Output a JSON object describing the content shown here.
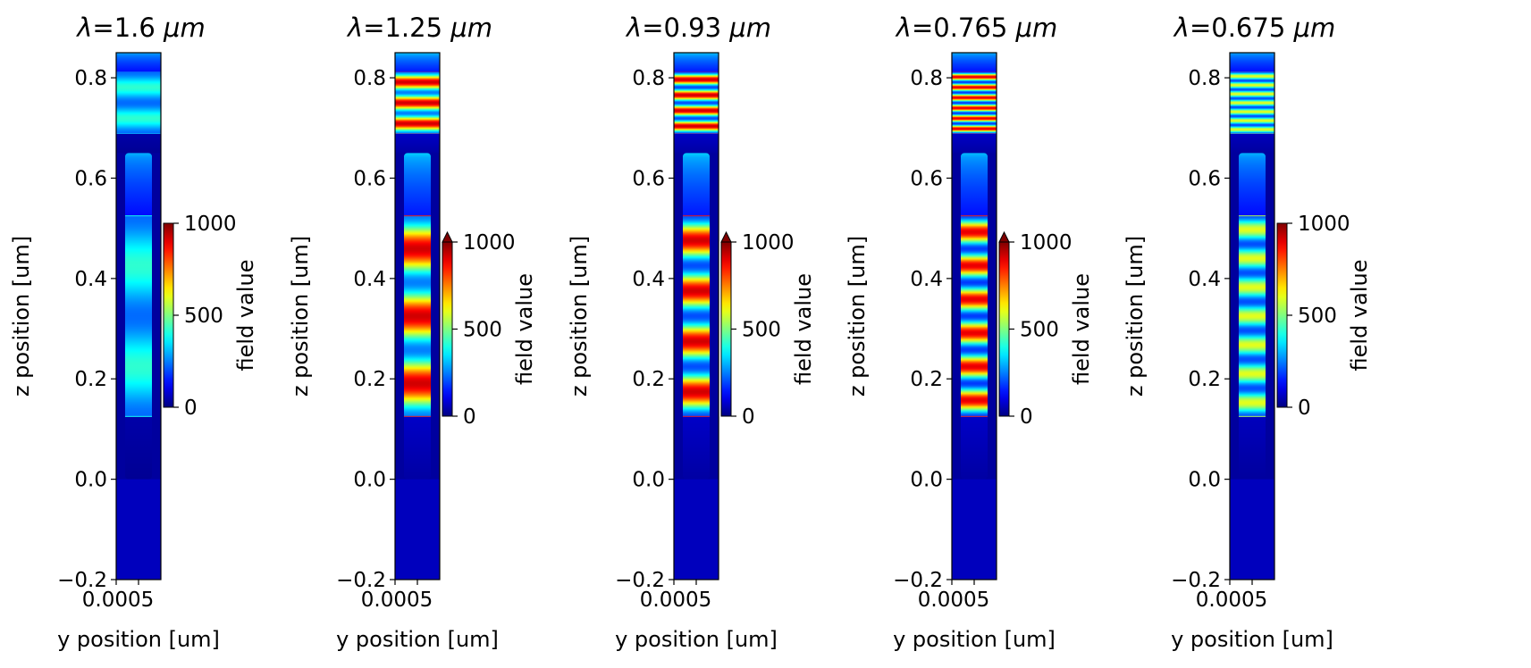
{
  "chart_data": [
    {
      "type": "heatmap",
      "title": "λ=1.6 μm",
      "title_lambda": "λ",
      "title_value": "=1.6 ",
      "title_unit": "μm",
      "xlabel": "y position [um]",
      "ylabel": "z position [um]",
      "x_tick_label": "0.0005",
      "yticks": [
        -0.2,
        0.0,
        0.2,
        0.4,
        0.6,
        0.8
      ],
      "ylim": [
        -0.2,
        0.85
      ],
      "colorbar": {
        "label": "field value",
        "ticks": [
          0,
          500,
          1000
        ],
        "range": [
          0,
          1000
        ],
        "extend_max": false
      },
      "field": {
        "cavity": [
          0,
          0.65
        ],
        "mode_count": 2,
        "cavity_peak": 420,
        "cavity_trough": 230,
        "top_level": 300,
        "bottom_level": 40
      }
    },
    {
      "type": "heatmap",
      "title": "λ=1.25 μm",
      "title_lambda": "λ",
      "title_value": "=1.25 ",
      "title_unit": "μm",
      "xlabel": "y position [um]",
      "ylabel": "z position [um]",
      "x_tick_label": "0.0005",
      "yticks": [
        -0.2,
        0.0,
        0.2,
        0.4,
        0.6,
        0.8
      ],
      "ylim": [
        -0.2,
        0.85
      ],
      "colorbar": {
        "label": "field value",
        "ticks": [
          0,
          500,
          1000
        ],
        "range": [
          0,
          1000
        ],
        "extend_max": true
      },
      "field": {
        "cavity": [
          0,
          0.65
        ],
        "mode_count": 3,
        "cavity_peak": 920,
        "cavity_trough": 250,
        "top_level": 330,
        "bottom_level": 70
      }
    },
    {
      "type": "heatmap",
      "title": "λ=0.93 μm",
      "title_lambda": "λ",
      "title_value": "=0.93 ",
      "title_unit": "μm",
      "xlabel": "y position [um]",
      "ylabel": "z position [um]",
      "x_tick_label": "0.0005",
      "yticks": [
        -0.2,
        0.0,
        0.2,
        0.4,
        0.6,
        0.8
      ],
      "ylim": [
        -0.2,
        0.85
      ],
      "colorbar": {
        "label": "field value",
        "ticks": [
          0,
          500,
          1000
        ],
        "range": [
          0,
          1000
        ],
        "extend_max": true
      },
      "field": {
        "cavity": [
          0,
          0.65
        ],
        "mode_count": 4,
        "cavity_peak": 920,
        "cavity_trough": 200,
        "top_level": 330,
        "bottom_level": 70
      }
    },
    {
      "type": "heatmap",
      "title": "λ=0.765 μm",
      "title_lambda": "λ",
      "title_value": "=0.765 ",
      "title_unit": "μm",
      "xlabel": "y position [um]",
      "ylabel": "z position [um]",
      "x_tick_label": "0.0005",
      "yticks": [
        -0.2,
        0.0,
        0.2,
        0.4,
        0.6,
        0.8
      ],
      "ylim": [
        -0.2,
        0.85
      ],
      "colorbar": {
        "label": "field value",
        "ticks": [
          0,
          500,
          1000
        ],
        "range": [
          0,
          1000
        ],
        "extend_max": true
      },
      "field": {
        "cavity": [
          0,
          0.65
        ],
        "mode_count": 6,
        "cavity_peak": 900,
        "cavity_trough": 180,
        "top_level": 310,
        "bottom_level": 70
      }
    },
    {
      "type": "heatmap",
      "title": "λ=0.675 μm",
      "title_lambda": "λ",
      "title_value": "=0.675 ",
      "title_unit": "μm",
      "xlabel": "y position [um]",
      "ylabel": "z position [um]",
      "x_tick_label": "0.0005",
      "yticks": [
        -0.2,
        0.0,
        0.2,
        0.4,
        0.6,
        0.8
      ],
      "ylim": [
        -0.2,
        0.85
      ],
      "colorbar": {
        "label": "field value",
        "ticks": [
          0,
          500,
          1000
        ],
        "range": [
          0,
          1000
        ],
        "extend_max": false
      },
      "field": {
        "cavity": [
          0,
          0.65
        ],
        "mode_count": 7,
        "cavity_peak": 600,
        "cavity_trough": 200,
        "top_level": 300,
        "bottom_level": 60
      }
    }
  ]
}
